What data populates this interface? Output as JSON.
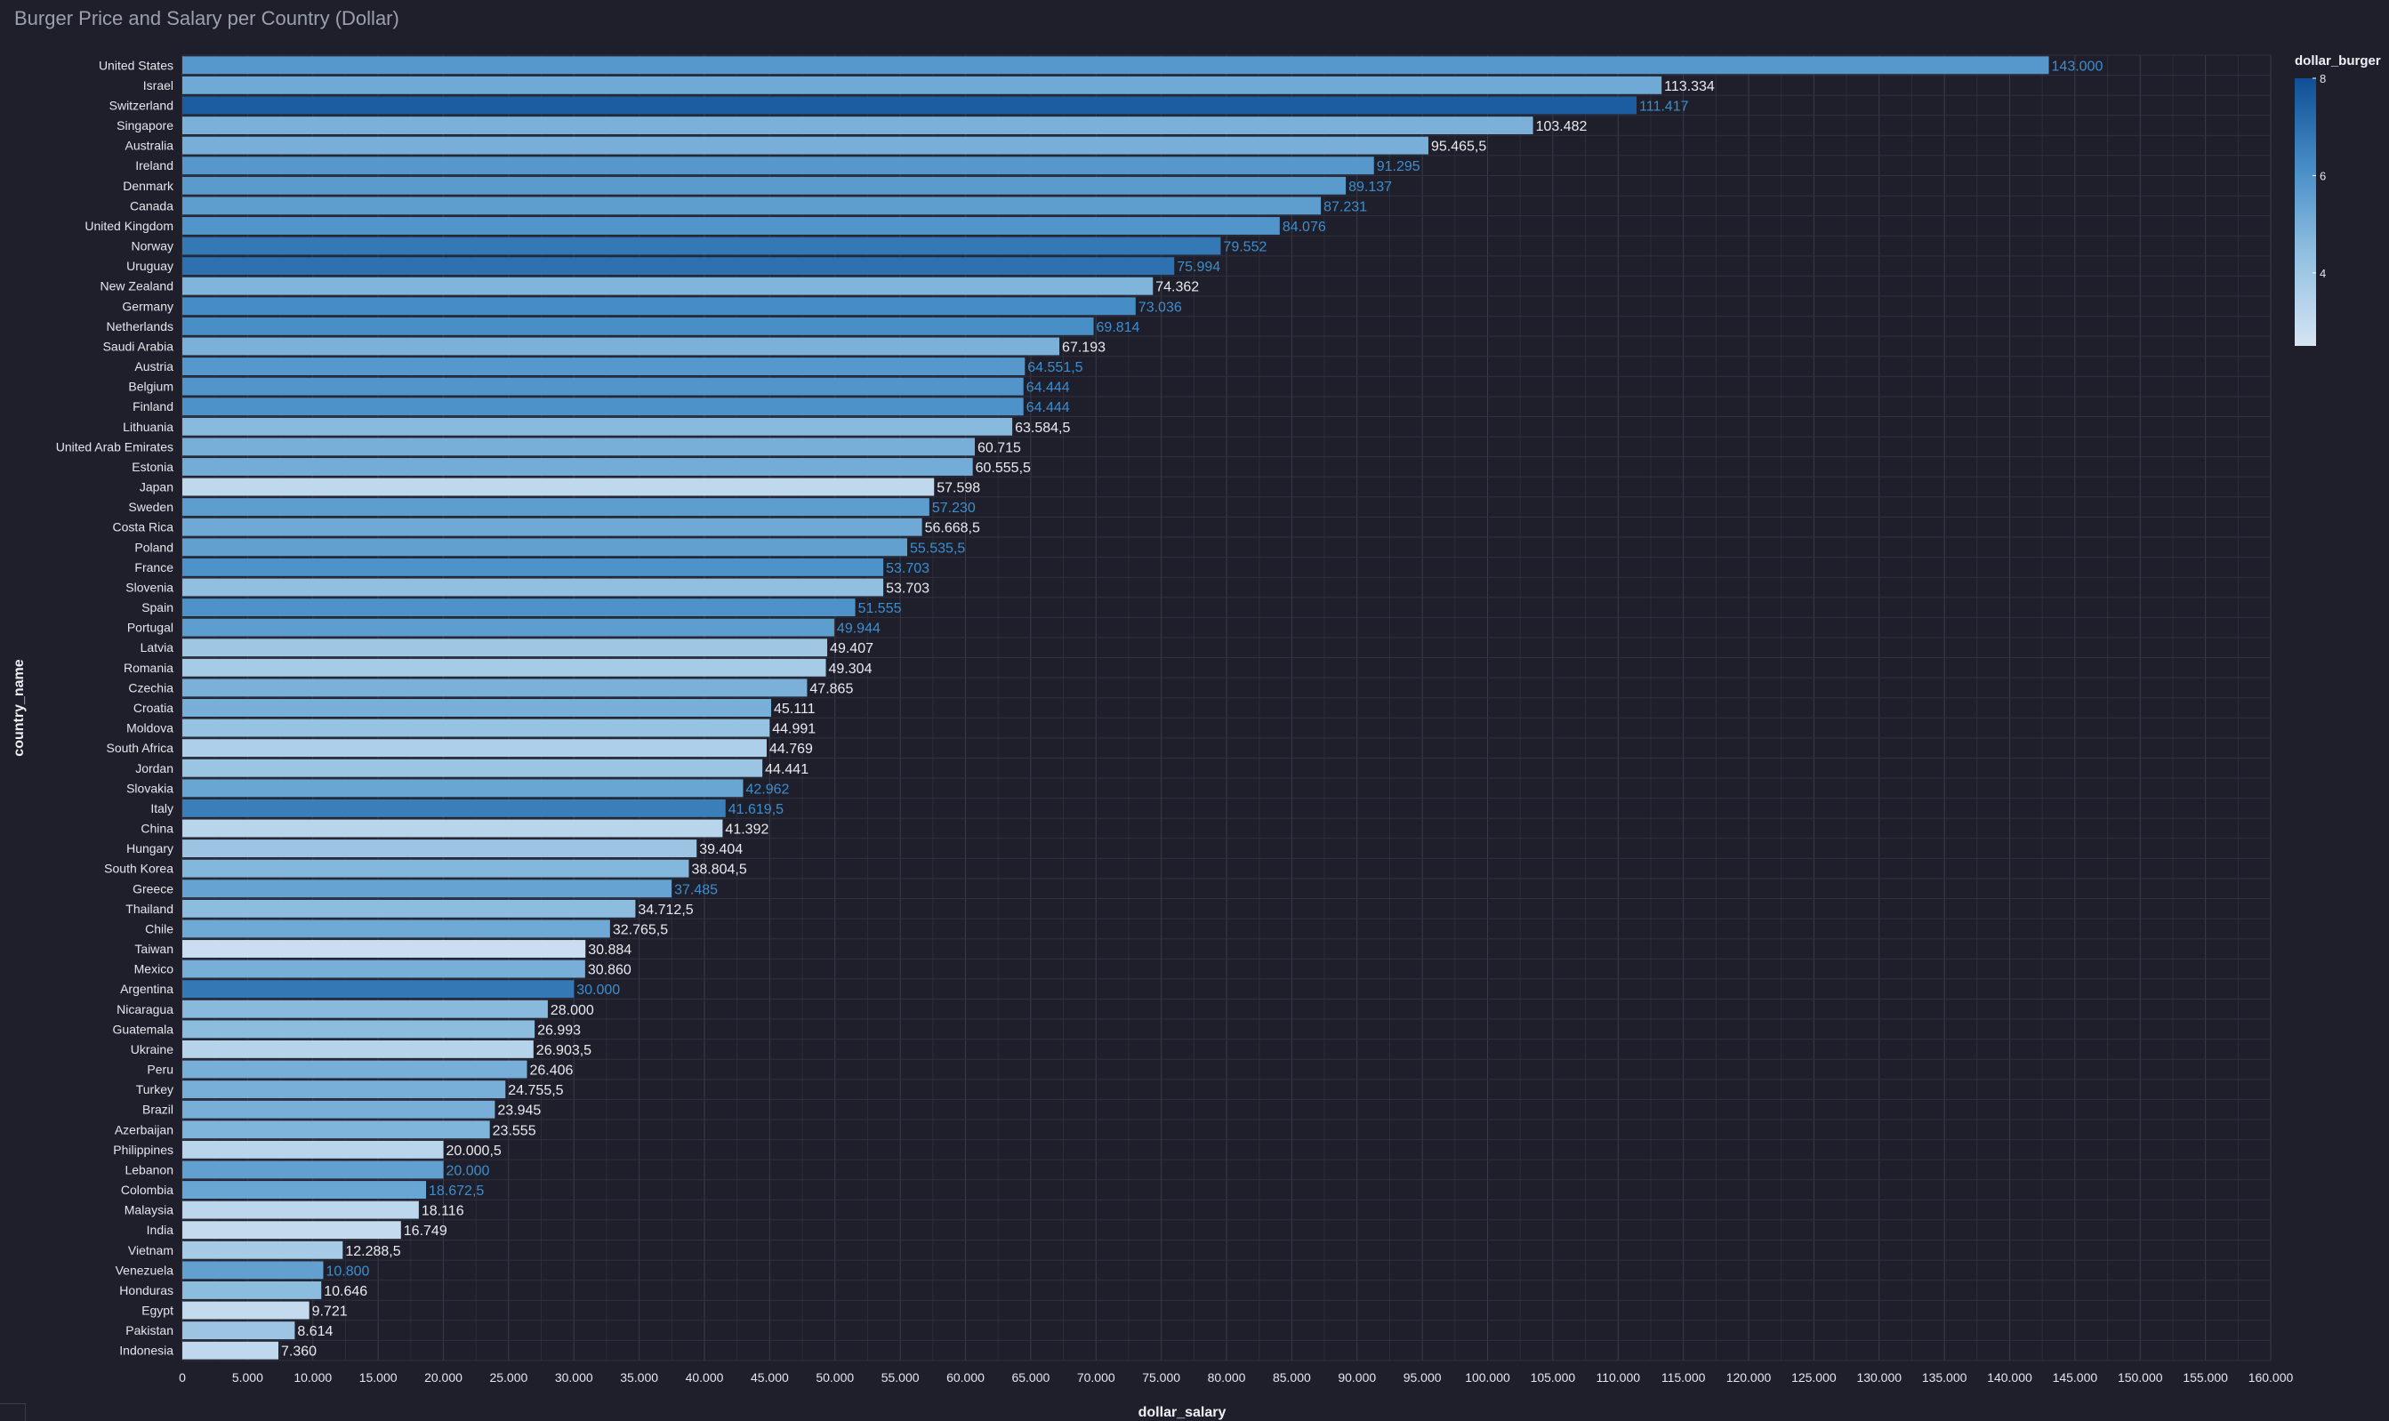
{
  "chart_data": {
    "type": "bar",
    "orientation": "horizontal",
    "title": "Burger Price and Salary per Country (Dollar)",
    "xlabel": "dollar_salary",
    "ylabel": "country_name",
    "xlim": [
      0,
      160000
    ],
    "x_ticks": [
      "0",
      "5.000",
      "10.000",
      "15.000",
      "20.000",
      "25.000",
      "30.000",
      "35.000",
      "40.000",
      "45.000",
      "50.000",
      "55.000",
      "60.000",
      "65.000",
      "70.000",
      "75.000",
      "80.000",
      "85.000",
      "90.000",
      "95.000",
      "100.000",
      "105.000",
      "110.000",
      "115.000",
      "120.000",
      "125.000",
      "130.000",
      "135.000",
      "140.000",
      "145.000",
      "150.000",
      "155.000",
      "160.000"
    ],
    "grid": true,
    "color_legend": {
      "title": "dollar_burger",
      "min": 2.5,
      "max": 8,
      "ticks": [
        "8",
        "6",
        "4"
      ],
      "placement": "top-right"
    },
    "categories": [
      "United States",
      "Israel",
      "Switzerland",
      "Singapore",
      "Australia",
      "Ireland",
      "Denmark",
      "Canada",
      "United Kingdom",
      "Norway",
      "Uruguay",
      "New Zealand",
      "Germany",
      "Netherlands",
      "Saudi Arabia",
      "Austria",
      "Belgium",
      "Finland",
      "Lithuania",
      "United Arab Emirates",
      "Estonia",
      "Japan",
      "Sweden",
      "Costa Rica",
      "Poland",
      "France",
      "Slovenia",
      "Spain",
      "Portugal",
      "Latvia",
      "Romania",
      "Czechia",
      "Croatia",
      "Moldova",
      "South Africa",
      "Jordan",
      "Slovakia",
      "Italy",
      "China",
      "Hungary",
      "South Korea",
      "Greece",
      "Thailand",
      "Chile",
      "Taiwan",
      "Mexico",
      "Argentina",
      "Nicaragua",
      "Guatemala",
      "Ukraine",
      "Peru",
      "Turkey",
      "Brazil",
      "Azerbaijan",
      "Philippines",
      "Lebanon",
      "Colombia",
      "Malaysia",
      "India",
      "Vietnam",
      "Venezuela",
      "Honduras",
      "Egypt",
      "Pakistan",
      "Indonesia"
    ],
    "values": [
      143000,
      113334,
      111417,
      103482,
      95465.5,
      91295,
      89137,
      87231,
      84076,
      79552,
      75994,
      74362,
      73036,
      69814,
      67193,
      64551.5,
      64444,
      64444,
      63584.5,
      60715,
      60555.5,
      57598,
      57230,
      56668.5,
      55535.5,
      53703,
      53703,
      51555,
      49944,
      49407,
      49304,
      47865,
      45111,
      44991,
      44769,
      44441,
      42962,
      41619.5,
      41392,
      39404,
      38804.5,
      37485,
      34712.5,
      32765.5,
      30884,
      30860,
      30000,
      28000,
      26993,
      26903.5,
      26406,
      24755.5,
      23945,
      23555,
      20000.5,
      20000,
      18672.5,
      18116,
      16749,
      12288.5,
      10800,
      10646,
      9721,
      8614,
      7360
    ],
    "value_labels": [
      "143.000",
      "113.334",
      "111.417",
      "103.482",
      "95.465,5",
      "91.295",
      "89.137",
      "87.231",
      "84.076",
      "79.552",
      "75.994",
      "74.362",
      "73.036",
      "69.814",
      "67.193",
      "64.551,5",
      "64.444",
      "64.444",
      "63.584,5",
      "60.715",
      "60.555,5",
      "57.598",
      "57.230",
      "56.668,5",
      "55.535,5",
      "53.703",
      "53.703",
      "51.555",
      "49.944",
      "49.407",
      "49.304",
      "47.865",
      "45.111",
      "44.991",
      "44.769",
      "44.441",
      "42.962",
      "41.619,5",
      "41.392",
      "39.404",
      "38.804,5",
      "37.485",
      "34.712,5",
      "32.765,5",
      "30.884",
      "30.860",
      "30.000",
      "28.000",
      "26.993",
      "26.903,5",
      "26.406",
      "24.755,5",
      "23.945",
      "23.555",
      "20.000,5",
      "20.000",
      "18.672,5",
      "18.116",
      "16.749",
      "12.288,5",
      "10.800",
      "10.646",
      "9.721",
      "8.614",
      "7.360"
    ],
    "dollar_burger": [
      5.8,
      5.2,
      7.6,
      4.9,
      5.0,
      5.8,
      5.7,
      5.6,
      5.9,
      6.8,
      7.0,
      4.8,
      6.2,
      6.1,
      4.9,
      5.8,
      5.9,
      6.0,
      4.6,
      5.0,
      5.1,
      3.1,
      5.6,
      5.2,
      5.5,
      6.0,
      4.4,
      6.0,
      5.6,
      4.0,
      3.8,
      4.9,
      5.0,
      4.2,
      3.6,
      4.1,
      5.3,
      6.6,
      3.3,
      4.1,
      4.7,
      5.4,
      4.5,
      5.2,
      2.8,
      5.0,
      6.8,
      4.6,
      4.5,
      3.4,
      5.0,
      5.0,
      5.0,
      4.8,
      3.3,
      5.5,
      5.3,
      3.2,
      3.0,
      3.8,
      5.5,
      4.5,
      3.0,
      4.1,
      3.1
    ]
  }
}
